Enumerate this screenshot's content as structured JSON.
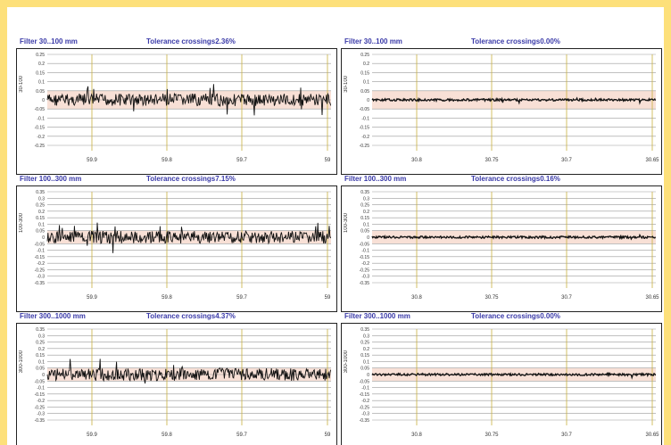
{
  "panels": [
    {
      "filter": "Filter 30..100 mm",
      "tolerance": "Tolerance crossings2.36%",
      "ylabel": "30-100",
      "yticks": [
        "0.25",
        "0.2",
        "0.15",
        "0.1",
        "0.05",
        "0",
        "-0.05",
        "-0.1",
        "-0.15",
        "-0.2",
        "-0.25"
      ],
      "xticks": [
        "59.9",
        "59.8",
        "59.7",
        "59"
      ],
      "noise": "high"
    },
    {
      "filter": "Filter 30..100 mm",
      "tolerance": "Tolerance crossings0.00%",
      "ylabel": "30-100",
      "yticks": [
        "0.25",
        "0.2",
        "0.15",
        "0.1",
        "0.05",
        "0",
        "-0.05",
        "-0.1",
        "-0.15",
        "-0.2",
        "-0.25"
      ],
      "xticks": [
        "30.8",
        "30.75",
        "30.7",
        "30.65"
      ],
      "noise": "low"
    },
    {
      "filter": "Filter 100..300 mm",
      "tolerance": "Tolerance crossings7.15%",
      "ylabel": "100-300",
      "yticks": [
        "0.35",
        "0.3",
        "0.25",
        "0.2",
        "0.15",
        "0.1",
        "0.05",
        "0",
        "-0.05",
        "-0.1",
        "-0.15",
        "-0.2",
        "-0.25",
        "-0.3",
        "-0.35"
      ],
      "xticks": [
        "59.9",
        "59.8",
        "59.7",
        "59"
      ],
      "noise": "high"
    },
    {
      "filter": "Filter 100..300 mm",
      "tolerance": "Tolerance crossings0.16%",
      "ylabel": "100-300",
      "yticks": [
        "0.35",
        "0.3",
        "0.25",
        "0.2",
        "0.15",
        "0.1",
        "0.05",
        "0",
        "-0.05",
        "-0.1",
        "-0.15",
        "-0.2",
        "-0.25",
        "-0.3",
        "-0.35"
      ],
      "xticks": [
        "30.8",
        "30.75",
        "30.7",
        "30.65"
      ],
      "noise": "low"
    },
    {
      "filter": "Filter 300..1000 mm",
      "tolerance": "Tolerance crossings4.37%",
      "ylabel": "300-1000",
      "yticks": [
        "0.35",
        "0.3",
        "0.25",
        "0.2",
        "0.15",
        "0.1",
        "0.05",
        "0",
        "-0.05",
        "-0.1",
        "-0.15",
        "-0.2",
        "-0.25",
        "-0.3",
        "-0.35"
      ],
      "xticks": [
        "59.9",
        "59.8",
        "59.7",
        "59"
      ],
      "noise": "high"
    },
    {
      "filter": "Filter 300..1000 mm",
      "tolerance": "Tolerance crossings0.00%",
      "ylabel": "300-1000",
      "yticks": [
        "0.35",
        "0.3",
        "0.25",
        "0.2",
        "0.15",
        "0.1",
        "0.05",
        "0",
        "-0.05",
        "-0.1",
        "-0.15",
        "-0.2",
        "-0.25",
        "-0.3",
        "-0.35"
      ],
      "xticks": [
        "30.8",
        "30.75",
        "30.7",
        "30.65"
      ],
      "noise": "low"
    }
  ],
  "colors": {
    "title": "#3a3aa8",
    "grid_h": "#9a9a9a",
    "grid_v": "#c8b040",
    "tolerance_band": "#f3c6b4",
    "trace": "#111111",
    "frame": "#fde07a"
  }
}
